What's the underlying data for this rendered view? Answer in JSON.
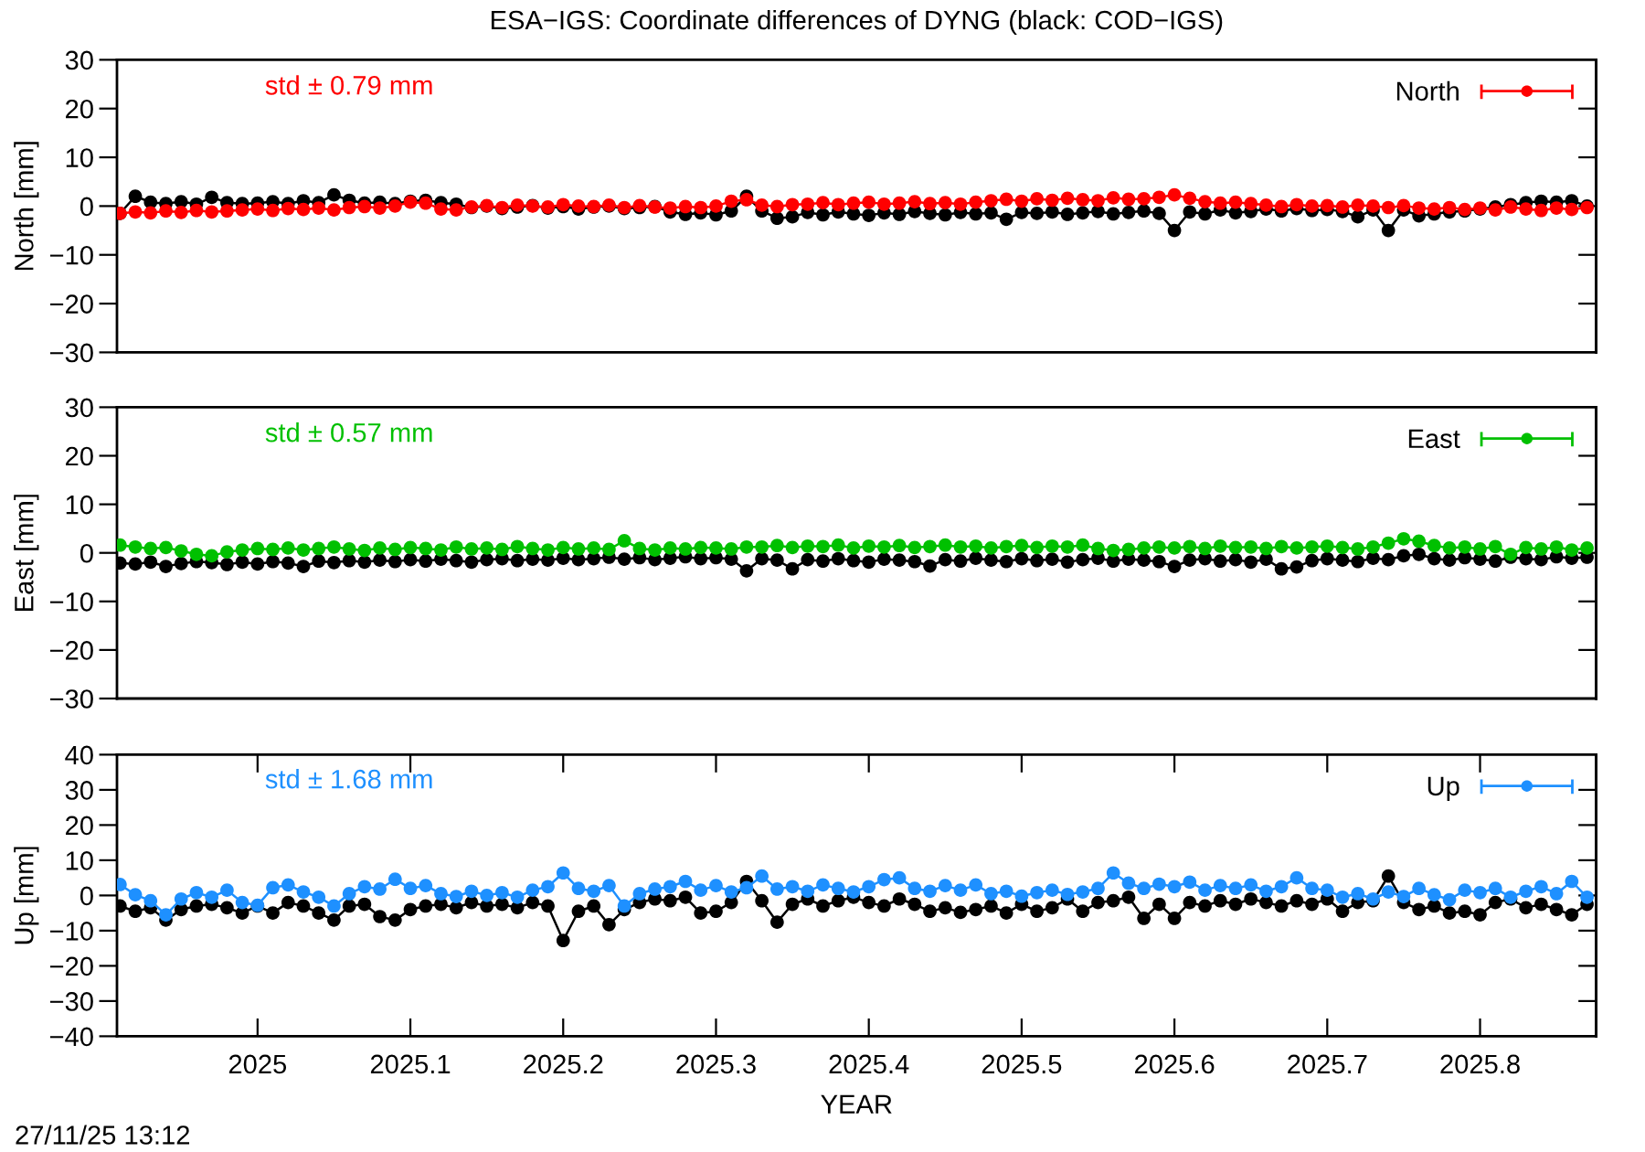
{
  "chart_data": [
    {
      "type": "line",
      "title": "ESA−IGS: Coordinate differences of DYNG (black: COD−IGS)",
      "ylabel": "North [mm]",
      "annotations": [
        "std ± 0.79 mm"
      ],
      "x": [
        2024.91,
        2024.92,
        2024.93,
        2024.94,
        2024.95,
        2024.96,
        2024.97,
        2024.98,
        2024.99,
        2025.0,
        2025.01,
        2025.02,
        2025.03,
        2025.04,
        2025.05,
        2025.06,
        2025.07,
        2025.08,
        2025.09,
        2025.1,
        2025.11,
        2025.12,
        2025.13,
        2025.14,
        2025.15,
        2025.16,
        2025.17,
        2025.18,
        2025.19,
        2025.2,
        2025.21,
        2025.22,
        2025.23,
        2025.24,
        2025.25,
        2025.26,
        2025.27,
        2025.28,
        2025.29,
        2025.3,
        2025.31,
        2025.32,
        2025.33,
        2025.34,
        2025.35,
        2025.36,
        2025.37,
        2025.38,
        2025.39,
        2025.4,
        2025.41,
        2025.42,
        2025.43,
        2025.44,
        2025.45,
        2025.46,
        2025.47,
        2025.48,
        2025.49,
        2025.5,
        2025.51,
        2025.52,
        2025.53,
        2025.54,
        2025.55,
        2025.56,
        2025.57,
        2025.58,
        2025.59,
        2025.6,
        2025.61,
        2025.62,
        2025.63,
        2025.64,
        2025.65,
        2025.66,
        2025.67,
        2025.68,
        2025.69,
        2025.7,
        2025.71,
        2025.72,
        2025.73,
        2025.74,
        2025.75,
        2025.76,
        2025.77,
        2025.78,
        2025.79,
        2025.8,
        2025.81,
        2025.82,
        2025.83,
        2025.84,
        2025.85,
        2025.86,
        2025.87
      ],
      "series": [
        {
          "color": "#000000",
          "values": [
            -1.5,
            2.0,
            0.8,
            0.5,
            0.9,
            0.4,
            1.8,
            0.7,
            0.5,
            0.6,
            0.9,
            0.5,
            1.1,
            0.7,
            2.3,
            1.2,
            0.6,
            0.8,
            0.5,
            1.0,
            1.2,
            0.7,
            0.4,
            -0.3,
            0.0,
            -0.5,
            -0.2,
            0.1,
            -0.4,
            -0.1,
            -0.6,
            -0.2,
            0.0,
            -0.5,
            -0.3,
            -0.1,
            -1.2,
            -1.7,
            -1.4,
            -1.8,
            -1.0,
            2.0,
            -1.0,
            -2.5,
            -2.2,
            -1.3,
            -1.8,
            -1.2,
            -1.6,
            -1.9,
            -1.4,
            -1.7,
            -1.1,
            -1.5,
            -1.8,
            -1.3,
            -1.6,
            -1.4,
            -2.7,
            -1.3,
            -1.5,
            -1.2,
            -1.7,
            -1.4,
            -1.1,
            -1.6,
            -1.3,
            -1.0,
            -1.5,
            -5.0,
            -1.2,
            -1.6,
            -0.8,
            -1.4,
            -1.1,
            -0.6,
            -1.0,
            -0.5,
            -0.9,
            -0.7,
            -1.1,
            -2.2,
            -0.8,
            -5.0,
            -0.8,
            -2.0,
            -1.6,
            -1.2,
            -1.0,
            -0.6,
            -0.2,
            0.3,
            0.7,
            1.0,
            0.8,
            1.1,
            0.0
          ]
        },
        {
          "name": "North",
          "color": "#ff0000",
          "values": [
            -1.5,
            -1.2,
            -1.4,
            -1.0,
            -1.3,
            -0.9,
            -1.2,
            -1.0,
            -0.8,
            -0.6,
            -0.9,
            -0.5,
            -0.7,
            -0.4,
            -0.8,
            -0.3,
            -0.1,
            -0.4,
            0.0,
            0.8,
            0.6,
            -0.6,
            -0.8,
            -0.2,
            0.1,
            -0.3,
            0.2,
            0.0,
            -0.2,
            0.3,
            0.0,
            -0.1,
            0.2,
            -0.3,
            0.1,
            -0.2,
            -0.4,
            -0.1,
            -0.3,
            0.0,
            1.0,
            1.3,
            0.2,
            -0.1,
            0.3,
            0.4,
            0.7,
            0.3,
            0.6,
            0.8,
            0.4,
            0.6,
            0.9,
            0.5,
            0.7,
            0.4,
            0.8,
            1.1,
            1.4,
            1.0,
            1.5,
            1.2,
            1.6,
            1.3,
            1.1,
            1.7,
            1.4,
            1.5,
            1.8,
            2.3,
            1.6,
            0.9,
            0.6,
            0.8,
            0.5,
            0.2,
            -0.1,
            0.3,
            0.0,
            0.1,
            -0.2,
            0.2,
            0.0,
            -0.3,
            0.1,
            -0.4,
            -0.6,
            -0.3,
            -0.7,
            -0.4,
            -0.8,
            -0.2,
            -0.6,
            -0.9,
            -0.4,
            -0.7,
            -0.3
          ]
        }
      ],
      "xlim": [
        2024.908,
        2025.876
      ],
      "ylim": [
        -30,
        30
      ],
      "yticks": [
        -30,
        -20,
        -10,
        0,
        10,
        20,
        30
      ],
      "tick_labels": "y",
      "legend": "top right",
      "marker": "circle",
      "line_style": "solid"
    },
    {
      "type": "line",
      "ylabel": "East [mm]",
      "annotations": [
        "std ± 0.57 mm"
      ],
      "x": [
        2024.91,
        2024.92,
        2024.93,
        2024.94,
        2024.95,
        2024.96,
        2024.97,
        2024.98,
        2024.99,
        2025.0,
        2025.01,
        2025.02,
        2025.03,
        2025.04,
        2025.05,
        2025.06,
        2025.07,
        2025.08,
        2025.09,
        2025.1,
        2025.11,
        2025.12,
        2025.13,
        2025.14,
        2025.15,
        2025.16,
        2025.17,
        2025.18,
        2025.19,
        2025.2,
        2025.21,
        2025.22,
        2025.23,
        2025.24,
        2025.25,
        2025.26,
        2025.27,
        2025.28,
        2025.29,
        2025.3,
        2025.31,
        2025.32,
        2025.33,
        2025.34,
        2025.35,
        2025.36,
        2025.37,
        2025.38,
        2025.39,
        2025.4,
        2025.41,
        2025.42,
        2025.43,
        2025.44,
        2025.45,
        2025.46,
        2025.47,
        2025.48,
        2025.49,
        2025.5,
        2025.51,
        2025.52,
        2025.53,
        2025.54,
        2025.55,
        2025.56,
        2025.57,
        2025.58,
        2025.59,
        2025.6,
        2025.61,
        2025.62,
        2025.63,
        2025.64,
        2025.65,
        2025.66,
        2025.67,
        2025.68,
        2025.69,
        2025.7,
        2025.71,
        2025.72,
        2025.73,
        2025.74,
        2025.75,
        2025.76,
        2025.77,
        2025.78,
        2025.79,
        2025.8,
        2025.81,
        2025.82,
        2025.83,
        2025.84,
        2025.85,
        2025.86,
        2025.87
      ],
      "series": [
        {
          "color": "#000000",
          "values": [
            -2.1,
            -2.3,
            -1.9,
            -2.8,
            -2.2,
            -1.8,
            -2.0,
            -2.4,
            -1.9,
            -2.3,
            -1.8,
            -2.1,
            -2.8,
            -1.7,
            -2.0,
            -1.6,
            -1.9,
            -1.5,
            -1.8,
            -1.4,
            -1.7,
            -1.3,
            -1.6,
            -1.9,
            -1.4,
            -1.2,
            -1.6,
            -1.3,
            -1.5,
            -1.1,
            -1.4,
            -1.2,
            -0.9,
            -1.3,
            -1.0,
            -1.4,
            -1.1,
            -0.8,
            -1.2,
            -1.0,
            -1.3,
            -3.7,
            -1.2,
            -1.5,
            -3.3,
            -1.4,
            -1.7,
            -1.2,
            -1.6,
            -1.9,
            -1.3,
            -1.5,
            -1.8,
            -2.7,
            -1.4,
            -1.7,
            -1.1,
            -1.5,
            -1.8,
            -1.2,
            -1.6,
            -1.3,
            -1.9,
            -1.4,
            -1.1,
            -1.7,
            -1.3,
            -1.5,
            -1.8,
            -2.8,
            -1.5,
            -1.2,
            -1.7,
            -1.4,
            -1.9,
            -1.3,
            -3.3,
            -2.9,
            -1.6,
            -1.2,
            -1.5,
            -1.8,
            -1.1,
            -1.4,
            -0.6,
            -0.3,
            -1.2,
            -1.5,
            -1.0,
            -1.3,
            -1.7,
            -0.9,
            -1.2,
            -1.4,
            -0.8,
            -1.1,
            -0.9
          ]
        },
        {
          "name": "East",
          "color": "#00c000",
          "values": [
            1.6,
            1.2,
            0.9,
            1.1,
            0.4,
            -0.3,
            -0.6,
            0.2,
            0.6,
            0.9,
            0.7,
            1.0,
            0.6,
            0.9,
            1.2,
            0.8,
            0.5,
            1.0,
            0.7,
            1.1,
            0.9,
            0.6,
            1.2,
            0.8,
            1.0,
            0.7,
            1.3,
            0.9,
            0.6,
            1.1,
            0.8,
            1.0,
            0.7,
            2.5,
            0.9,
            0.6,
            1.0,
            0.8,
            1.1,
            1.0,
            0.8,
            1.2,
            1.2,
            1.5,
            1.1,
            1.4,
            1.3,
            1.6,
            1.0,
            1.4,
            1.2,
            1.5,
            1.1,
            1.3,
            1.6,
            1.2,
            1.4,
            1.0,
            1.3,
            1.5,
            1.1,
            1.4,
            1.2,
            1.6,
            0.9,
            0.5,
            0.7,
            1.0,
            1.2,
            1.0,
            1.3,
            0.9,
            1.4,
            1.1,
            1.2,
            0.9,
            1.3,
            1.0,
            1.2,
            1.4,
            1.1,
            0.8,
            1.2,
            2.0,
            2.9,
            2.4,
            1.5,
            1.0,
            1.2,
            0.8,
            1.3,
            -0.3,
            1.1,
            0.8,
            1.2,
            0.6,
            1.0
          ]
        }
      ],
      "xlim": [
        2024.908,
        2025.876
      ],
      "ylim": [
        -30,
        30
      ],
      "yticks": [
        -30,
        -20,
        -10,
        0,
        10,
        20,
        30
      ],
      "tick_labels": "y",
      "legend": "top right",
      "marker": "circle",
      "line_style": "solid"
    },
    {
      "type": "line",
      "xlabel": "YEAR",
      "ylabel": "Up [mm]",
      "annotations": [
        "std ± 1.68 mm",
        "27/11/25 13:12"
      ],
      "x": [
        2024.91,
        2024.92,
        2024.93,
        2024.94,
        2024.95,
        2024.96,
        2024.97,
        2024.98,
        2024.99,
        2025.0,
        2025.01,
        2025.02,
        2025.03,
        2025.04,
        2025.05,
        2025.06,
        2025.07,
        2025.08,
        2025.09,
        2025.1,
        2025.11,
        2025.12,
        2025.13,
        2025.14,
        2025.15,
        2025.16,
        2025.17,
        2025.18,
        2025.19,
        2025.2,
        2025.21,
        2025.22,
        2025.23,
        2025.24,
        2025.25,
        2025.26,
        2025.27,
        2025.28,
        2025.29,
        2025.3,
        2025.31,
        2025.32,
        2025.33,
        2025.34,
        2025.35,
        2025.36,
        2025.37,
        2025.38,
        2025.39,
        2025.4,
        2025.41,
        2025.42,
        2025.43,
        2025.44,
        2025.45,
        2025.46,
        2025.47,
        2025.48,
        2025.49,
        2025.5,
        2025.51,
        2025.52,
        2025.53,
        2025.54,
        2025.55,
        2025.56,
        2025.57,
        2025.58,
        2025.59,
        2025.6,
        2025.61,
        2025.62,
        2025.63,
        2025.64,
        2025.65,
        2025.66,
        2025.67,
        2025.68,
        2025.69,
        2025.7,
        2025.71,
        2025.72,
        2025.73,
        2025.74,
        2025.75,
        2025.76,
        2025.77,
        2025.78,
        2025.79,
        2025.8,
        2025.81,
        2025.82,
        2025.83,
        2025.84,
        2025.85,
        2025.86,
        2025.87
      ],
      "series": [
        {
          "color": "#000000",
          "values": [
            -3.0,
            -4.5,
            -3.5,
            -7.0,
            -4.0,
            -3.0,
            -2.5,
            -3.5,
            -5.0,
            -3.0,
            -5.0,
            -2.0,
            -3.0,
            -5.0,
            -7.0,
            -3.0,
            -2.5,
            -6.0,
            -7.0,
            -4.0,
            -3.0,
            -2.5,
            -3.5,
            -2.0,
            -3.0,
            -2.5,
            -3.5,
            -2.0,
            -3.0,
            -12.8,
            -4.5,
            -3.0,
            -8.3,
            -4.0,
            -2.0,
            -1.0,
            -1.5,
            -0.5,
            -5.0,
            -4.5,
            -2.0,
            4.0,
            -1.5,
            -7.6,
            -2.5,
            -1.0,
            -3.0,
            -1.5,
            -0.5,
            -2.0,
            -3.0,
            -1.0,
            -2.5,
            -4.5,
            -3.5,
            -4.8,
            -4.0,
            -3.0,
            -5.0,
            -2.5,
            -4.5,
            -3.5,
            -1.0,
            -4.5,
            -2.0,
            -1.5,
            -0.5,
            -6.5,
            -2.5,
            -6.5,
            -2.0,
            -3.0,
            -1.5,
            -2.5,
            -1.0,
            -2.0,
            -3.0,
            -1.5,
            -2.5,
            -1.0,
            -4.5,
            -2.0,
            -1.5,
            5.5,
            -2.0,
            -4.0,
            -3.0,
            -5.0,
            -4.5,
            -5.5,
            -2.0,
            -1.0,
            -3.5,
            -2.5,
            -4.0,
            -5.5,
            -2.5
          ]
        },
        {
          "name": "Up",
          "color": "#1e90ff",
          "values": [
            3.1,
            0.2,
            -1.5,
            -5.5,
            -1.0,
            0.8,
            -0.5,
            1.5,
            -2.0,
            -2.8,
            2.2,
            3.0,
            1.0,
            -0.5,
            -3.0,
            0.5,
            2.5,
            1.8,
            4.6,
            2.0,
            2.8,
            0.5,
            -0.3,
            1.2,
            0.0,
            0.8,
            -0.5,
            1.5,
            2.5,
            6.4,
            2.0,
            1.2,
            2.8,
            -3.0,
            0.5,
            1.8,
            2.5,
            4.0,
            1.5,
            2.8,
            1.0,
            2.2,
            5.5,
            1.8,
            2.5,
            1.2,
            3.0,
            2.0,
            1.0,
            2.5,
            4.5,
            5.0,
            2.0,
            1.2,
            2.8,
            1.5,
            3.0,
            0.5,
            1.2,
            -0.2,
            0.8,
            1.5,
            0.3,
            1.0,
            2.0,
            6.4,
            3.5,
            2.0,
            3.2,
            2.5,
            3.8,
            1.5,
            2.8,
            2.0,
            3.0,
            1.2,
            2.5,
            5.0,
            2.0,
            1.5,
            -0.5,
            0.5,
            -1.0,
            1.0,
            -0.3,
            2.0,
            0.2,
            -1.2,
            1.5,
            0.8,
            2.0,
            -0.5,
            1.2,
            2.5,
            0.5,
            4.0,
            -0.5
          ]
        }
      ],
      "xlim": [
        2024.908,
        2025.876
      ],
      "xticks": [
        2025,
        2025.1,
        2025.2,
        2025.3,
        2025.4,
        2025.5,
        2025.6,
        2025.7,
        2025.8
      ],
      "ylim": [
        -40,
        40
      ],
      "yticks": [
        -40,
        -30,
        -20,
        -10,
        0,
        10,
        20,
        30,
        40
      ],
      "legend": "top right",
      "marker": "circle",
      "line_style": "solid"
    }
  ]
}
